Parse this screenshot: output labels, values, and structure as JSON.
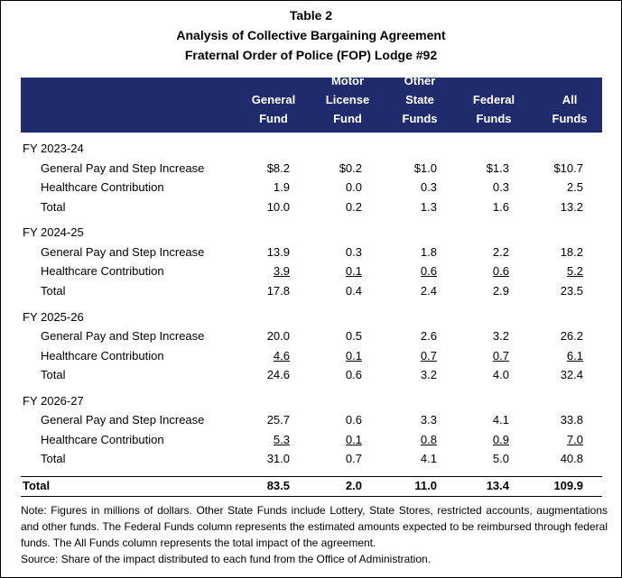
{
  "title": [
    "Table 2",
    "Analysis of Collective Bargaining Agreement",
    "Fraternal Order of Police (FOP) Lodge #92"
  ],
  "columns": [
    [
      "General",
      "Fund"
    ],
    [
      "Motor",
      "License",
      "Fund"
    ],
    [
      "Other",
      "State",
      "Funds"
    ],
    [
      "Federal",
      "Funds"
    ],
    [
      "All",
      "Funds"
    ]
  ],
  "sections": [
    {
      "label": "FY 2023-24",
      "rows": [
        {
          "label": "General Pay and Step Increase",
          "values": [
            "$8.2",
            "$0.2",
            "$1.0",
            "$1.3",
            "$10.7"
          ]
        },
        {
          "label": "Healthcare Contribution",
          "values": [
            "1.9",
            "0.0",
            "0.3",
            "0.3",
            "2.5"
          ]
        },
        {
          "label": "Total",
          "values": [
            "10.0",
            "0.2",
            "1.3",
            "1.6",
            "13.2"
          ]
        }
      ]
    },
    {
      "label": "FY 2024-25",
      "rows": [
        {
          "label": "General Pay and Step Increase",
          "values": [
            "13.9",
            "0.3",
            "1.8",
            "2.2",
            "18.2"
          ]
        },
        {
          "label": "Healthcare Contribution",
          "values": [
            "3.9",
            "0.1",
            "0.6",
            "0.6",
            "5.2"
          ],
          "underlined": true
        },
        {
          "label": "Total",
          "values": [
            "17.8",
            "0.4",
            "2.4",
            "2.9",
            "23.5"
          ]
        }
      ]
    },
    {
      "label": "FY 2025-26",
      "rows": [
        {
          "label": "General Pay and Step Increase",
          "values": [
            "20.0",
            "0.5",
            "2.6",
            "3.2",
            "26.2"
          ]
        },
        {
          "label": "Healthcare Contribution",
          "values": [
            "4.6",
            "0.1",
            "0.7",
            "0.7",
            "6.1"
          ],
          "underlined": true
        },
        {
          "label": "Total",
          "values": [
            "24.6",
            "0.6",
            "3.2",
            "4.0",
            "32.4"
          ]
        }
      ]
    },
    {
      "label": "FY 2026-27",
      "rows": [
        {
          "label": "General Pay and Step Increase",
          "values": [
            "25.7",
            "0.6",
            "3.3",
            "4.1",
            "33.8"
          ]
        },
        {
          "label": "Healthcare Contribution",
          "values": [
            "5.3",
            "0.1",
            "0.8",
            "0.9",
            "7.0"
          ],
          "underlined": true
        },
        {
          "label": "Total",
          "values": [
            "31.0",
            "0.7",
            "4.1",
            "5.0",
            "40.8"
          ]
        }
      ]
    }
  ],
  "total": {
    "label": "Total",
    "values": [
      "83.5",
      "2.0",
      "11.0",
      "13.4",
      "109.9"
    ]
  },
  "notes": [
    "Note: Figures in millions of dollars. Other State Funds include Lottery, State Stores, restricted accounts, augmentations and other funds. The Federal Funds column represents the estimated amounts expected to be reimbursed through federal funds. The All Funds column represents the total impact of the agreement.",
    "Source: Share of the impact distributed to each fund from the Office of Administration."
  ]
}
